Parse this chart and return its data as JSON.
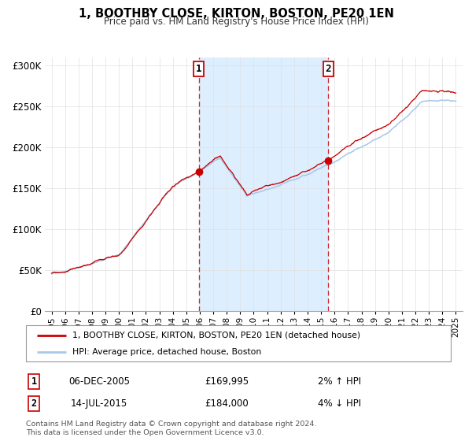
{
  "title": "1, BOOTHBY CLOSE, KIRTON, BOSTON, PE20 1EN",
  "subtitle": "Price paid vs. HM Land Registry's House Price Index (HPI)",
  "sale1_date_num": 2005.92,
  "sale1_price": 169995,
  "sale1_label": "06-DEC-2005",
  "sale1_pct": "2% ↑ HPI",
  "sale2_date_num": 2015.54,
  "sale2_price": 184000,
  "sale2_label": "14-JUL-2015",
  "sale2_pct": "4% ↓ HPI",
  "legend_line1": "1, BOOTHBY CLOSE, KIRTON, BOSTON, PE20 1EN (detached house)",
  "legend_line2": "HPI: Average price, detached house, Boston",
  "footer1": "Contains HM Land Registry data © Crown copyright and database right 2024.",
  "footer2": "This data is licensed under the Open Government Licence v3.0.",
  "hpi_color": "#a8c8e8",
  "price_color": "#cc0000",
  "sale_dot_color": "#cc0000",
  "shading_color": "#ddeeff",
  "ylim": [
    0,
    310000
  ],
  "xlim_start": 1994.5,
  "xlim_end": 2025.5,
  "yticks": [
    0,
    50000,
    100000,
    150000,
    200000,
    250000,
    300000
  ],
  "ytick_labels": [
    "£0",
    "£50K",
    "£100K",
    "£150K",
    "£200K",
    "£250K",
    "£300K"
  ],
  "xticks": [
    1995,
    1996,
    1997,
    1998,
    1999,
    2000,
    2001,
    2002,
    2003,
    2004,
    2005,
    2006,
    2007,
    2008,
    2009,
    2010,
    2011,
    2012,
    2013,
    2014,
    2015,
    2016,
    2017,
    2018,
    2019,
    2020,
    2021,
    2022,
    2023,
    2024,
    2025
  ]
}
